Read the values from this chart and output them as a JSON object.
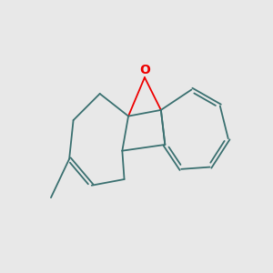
{
  "bg_color": "#e8e8e8",
  "bond_color": "#3a7070",
  "o_color": "#ee0000",
  "o_label": "O",
  "lw": 1.3,
  "figsize": [
    3.0,
    3.0
  ],
  "dpi": 100,
  "xlim": [
    -3.5,
    3.2
  ],
  "ylim": [
    -2.8,
    2.8
  ]
}
